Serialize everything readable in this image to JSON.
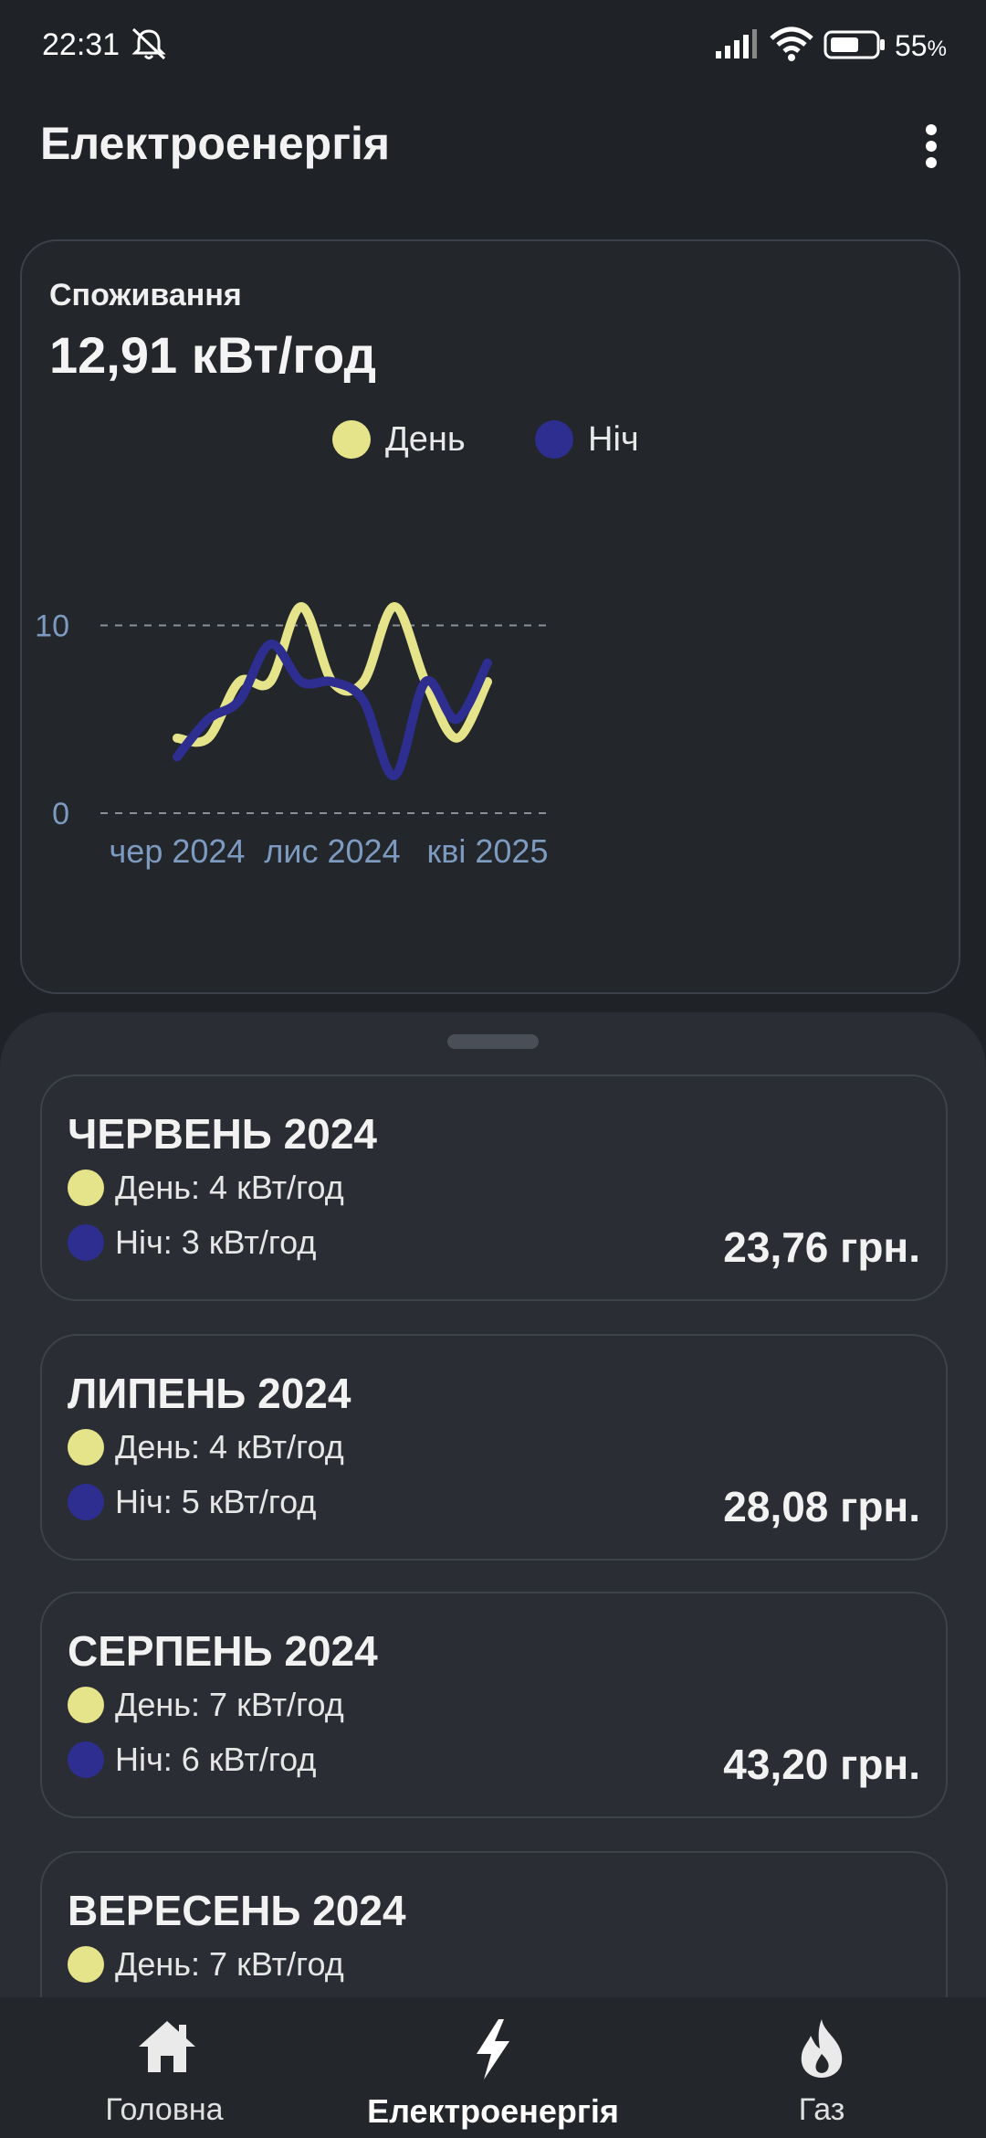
{
  "status_bar": {
    "time": "22:31",
    "battery": "55"
  },
  "app_bar": {
    "title": "Електроенергія"
  },
  "chart_card": {
    "subtitle": "Споживання",
    "total": "12,91 кВт/год",
    "colors": {
      "day": "#e6e48a",
      "night": "#2d2e8f"
    }
  },
  "chart_data": {
    "type": "line",
    "legend": [
      "День",
      "Ніч"
    ],
    "x": [
      "2024-06",
      "2024-07",
      "2024-08",
      "2024-09",
      "2024-10",
      "2024-11",
      "2024-12",
      "2025-01",
      "2025-02",
      "2025-03",
      "2025-04"
    ],
    "x_ticks": [
      "чер 2024",
      "лис 2024",
      "кві 2025"
    ],
    "y_ticks": [
      "0",
      "10"
    ],
    "ylim": [
      0,
      11
    ],
    "grid": "dashed horizontal at 0 and 10",
    "series": [
      {
        "name": "День",
        "values": [
          4,
          4,
          7,
          7,
          11,
          7,
          7,
          11,
          7,
          4,
          7
        ]
      },
      {
        "name": "Ніч",
        "values": [
          3,
          5,
          6,
          9,
          7,
          7,
          6,
          2,
          7,
          5,
          8
        ]
      }
    ]
  },
  "months": [
    {
      "title": "ЧЕРВЕНЬ 2024",
      "day": "День: 4 кВт/год",
      "night": "Ніч: 3 кВт/год",
      "price": "23,76 грн."
    },
    {
      "title": "ЛИПЕНЬ 2024",
      "day": "День: 4 кВт/год",
      "night": "Ніч: 5 кВт/год",
      "price": "28,08 грн."
    },
    {
      "title": "СЕРПЕНЬ 2024",
      "day": "День: 7 кВт/год",
      "night": "Ніч: 6 кВт/год",
      "price": "43,20 грн."
    },
    {
      "title": "ВЕРЕСЕНЬ 2024",
      "day": "День: 7 кВт/год",
      "night": "",
      "price": ""
    }
  ],
  "bottom_nav": [
    {
      "label": "Головна",
      "icon": "home-icon",
      "active": false
    },
    {
      "label": "Електроенергія",
      "icon": "lightning-icon",
      "active": true
    },
    {
      "label": "Газ",
      "icon": "flame-icon",
      "active": false
    }
  ]
}
